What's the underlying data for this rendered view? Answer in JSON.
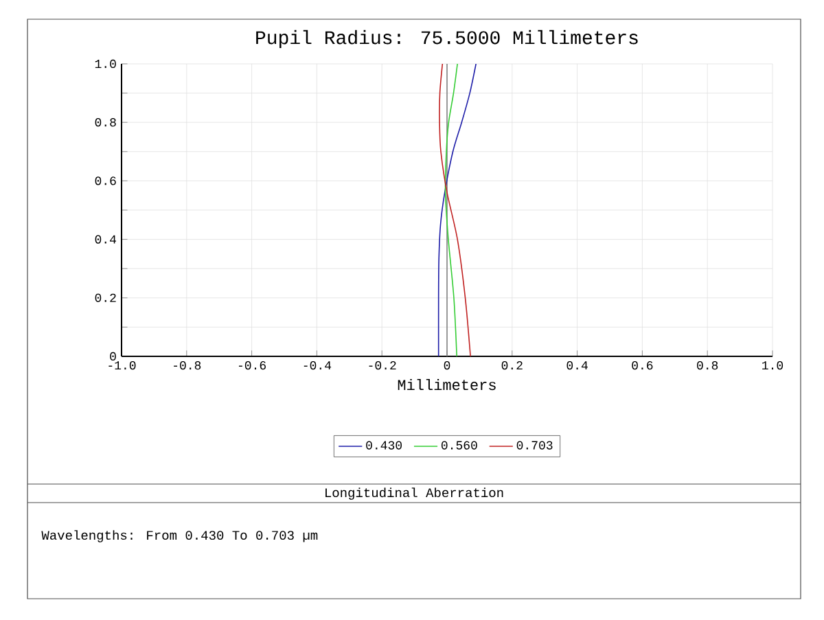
{
  "chart_data": {
    "type": "line",
    "title": "Pupil Radius: 75.5000 Millimeters",
    "xlabel": "Millimeters",
    "xlim": [
      -1,
      1
    ],
    "ylim": [
      0,
      1
    ],
    "xticks": [
      {
        "value": -1,
        "label": "-1.0"
      },
      -0.8,
      -0.6,
      -0.4,
      -0.2,
      0,
      0.2,
      0.4,
      0.6,
      0.8,
      {
        "value": 1,
        "label": "1.0"
      }
    ],
    "yticks": [
      0,
      {
        "value": 0.1,
        "label": null
      },
      0.2,
      {
        "value": 0.3,
        "label": null
      },
      0.4,
      {
        "value": 0.5,
        "label": null
      },
      0.6,
      {
        "value": 0.7,
        "label": null
      },
      0.8,
      {
        "value": 0.9,
        "label": null
      },
      {
        "value": 1,
        "label": "1.0"
      }
    ],
    "grid": true,
    "legend": "bottom",
    "ref_lines": [
      {
        "axis": "x",
        "value": 0,
        "color": "#808080"
      }
    ],
    "series": [
      {
        "name": "0.430",
        "color": "#1c1ca8",
        "x": [
          -0.026,
          -0.026,
          -0.025,
          -0.02,
          -0.007,
          0.018,
          0.045,
          0.07,
          0.089
        ],
        "values": [
          0,
          0.2,
          0.33,
          0.45,
          0.56,
          0.7,
          0.8,
          0.9,
          1
        ]
      },
      {
        "name": "0.560",
        "color": "#33cc33",
        "x": [
          0.03,
          0.021,
          0.004,
          -0.005,
          -0.002,
          0.005,
          0.02,
          0.032
        ],
        "values": [
          0,
          0.2,
          0.4,
          0.56,
          0.7,
          0.8,
          0.9,
          1
        ]
      },
      {
        "name": "0.703",
        "color": "#c02020",
        "x": [
          0.072,
          0.056,
          0.032,
          0.0,
          -0.019,
          -0.023,
          -0.022,
          -0.014
        ],
        "values": [
          0,
          0.2,
          0.4,
          0.56,
          0.7,
          0.8,
          0.9,
          1
        ]
      }
    ],
    "annotations": [
      "Longitudinal Aberration",
      "Wavelengths: From 0.430 To 0.703 µm"
    ]
  }
}
